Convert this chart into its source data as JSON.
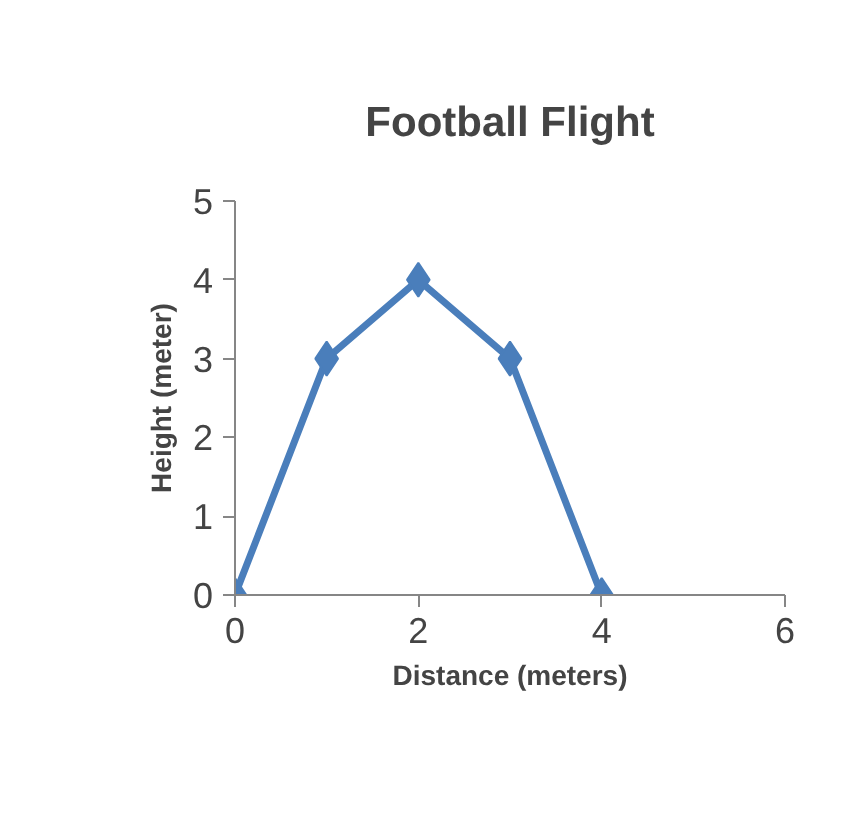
{
  "chart_data": {
    "type": "line",
    "title": "Football Flight",
    "xlabel": "Distance (meters)",
    "ylabel": "Height (meter)",
    "x": [
      0,
      1,
      2,
      3,
      4
    ],
    "series": [
      {
        "color": "#4a7ebb",
        "values": [
          0,
          3,
          4,
          3,
          0
        ]
      }
    ],
    "xlim": [
      0,
      6
    ],
    "xticks": [
      0,
      2,
      4,
      6
    ],
    "ylim": [
      0,
      5
    ],
    "yticks": [
      0,
      1,
      2,
      3,
      4,
      5
    ],
    "grid": false,
    "marker": "diamond",
    "line_style": "solid"
  }
}
